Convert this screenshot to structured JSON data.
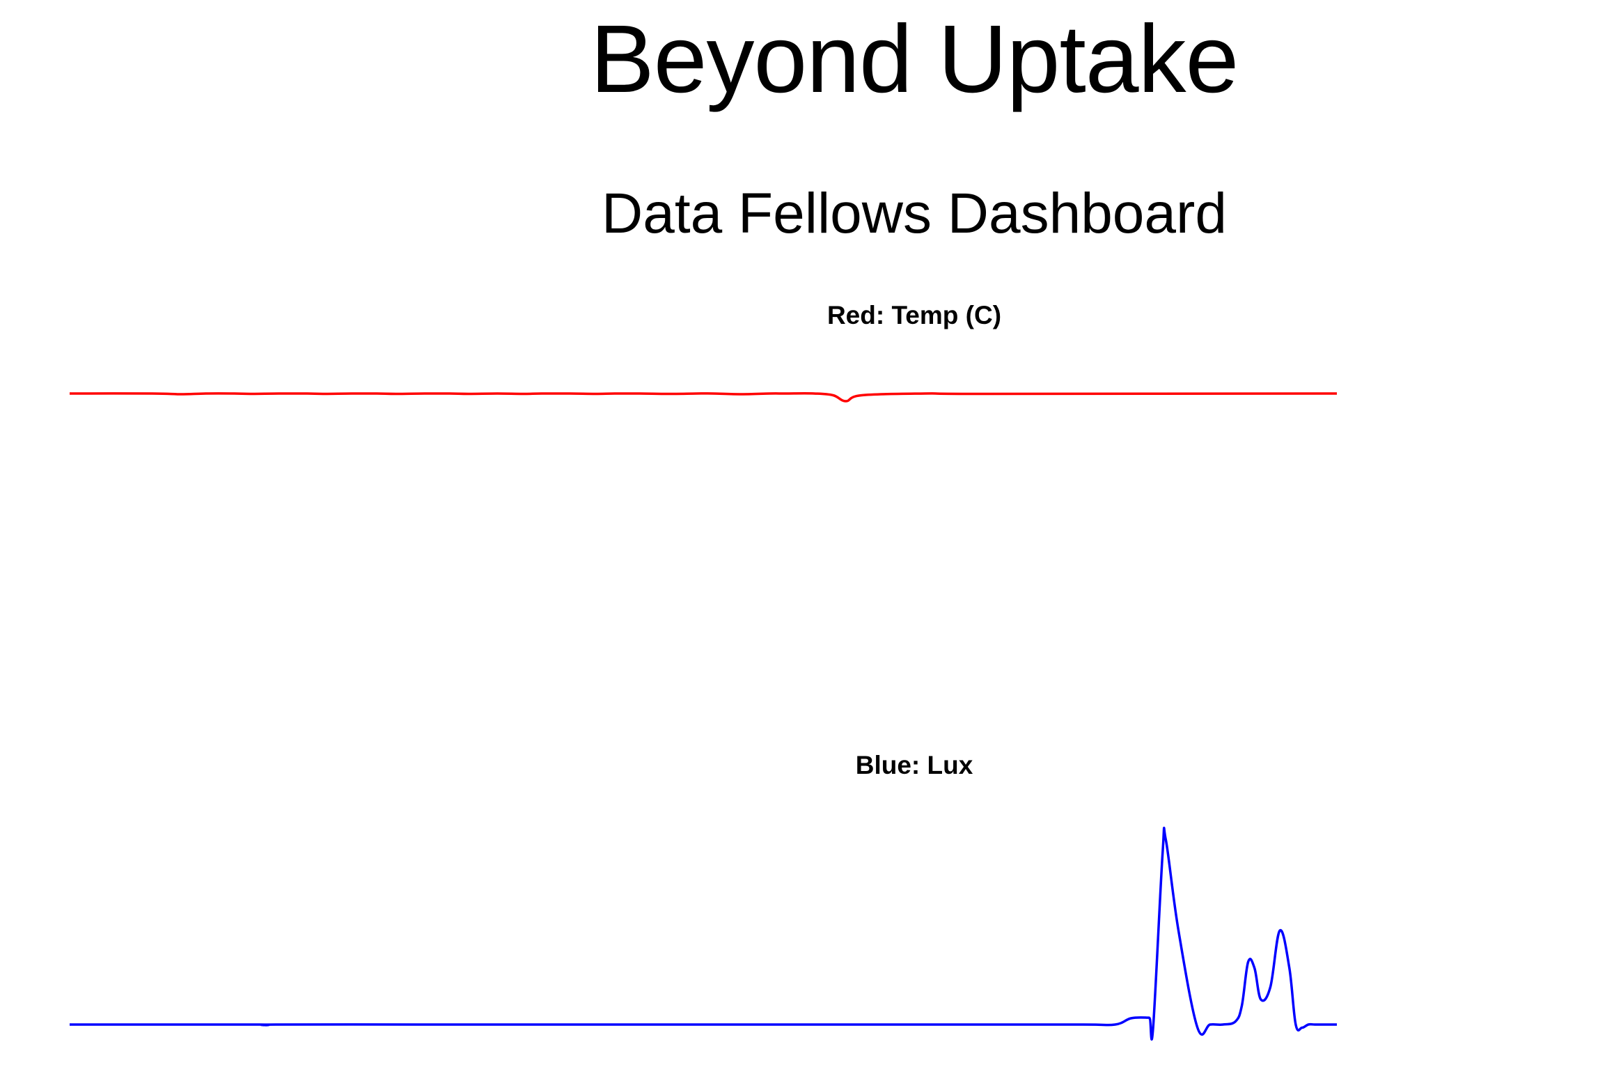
{
  "header": {
    "title": "Beyond Uptake",
    "subtitle": "Data Fellows Dashboard"
  },
  "chart_data": [
    {
      "type": "line",
      "title": "Red: Temp (C)",
      "color": "#ff0000",
      "series": [
        {
          "x": [
            0,
            26,
            35,
            43,
            52,
            57,
            66,
            75,
            80,
            89,
            97,
            103,
            112,
            120,
            126,
            135,
            143,
            149,
            158,
            166,
            172,
            180,
            189,
            198,
            203,
            212,
            221,
            226,
            235,
            241,
            245,
            250,
            270,
            290,
            400
          ],
          "values": [
            0,
            0,
            -0.2,
            0,
            0,
            -0.1,
            0,
            0,
            -0.1,
            0,
            0,
            -0.1,
            0,
            0,
            -0.1,
            0,
            -0.1,
            0,
            0,
            -0.1,
            0,
            0,
            -0.1,
            0,
            0,
            -0.2,
            0,
            0,
            0,
            -0.5,
            -2.2,
            -0.5,
            0,
            -0.1,
            0
          ]
        }
      ]
    },
    {
      "type": "line",
      "title": "Blue: Lux",
      "color": "#0000ff",
      "series": [
        {
          "x": [
            0,
            30,
            60,
            62,
            65,
            110,
            120,
            200,
            280,
            320,
            330,
            335,
            340,
            341,
            342,
            345,
            346,
            350,
            356,
            360,
            364,
            368,
            370,
            372,
            374,
            376,
            379,
            382,
            385,
            387,
            389,
            391,
            393,
            395,
            400
          ],
          "values": [
            0,
            0,
            0,
            -2,
            0,
            0,
            0,
            0,
            0,
            0,
            0,
            20,
            22,
            18,
            -10,
            550,
            590,
            300,
            -10,
            0,
            0,
            10,
            60,
            200,
            180,
            80,
            120,
            300,
            180,
            0,
            -10,
            0,
            0,
            0,
            0
          ]
        }
      ]
    }
  ]
}
